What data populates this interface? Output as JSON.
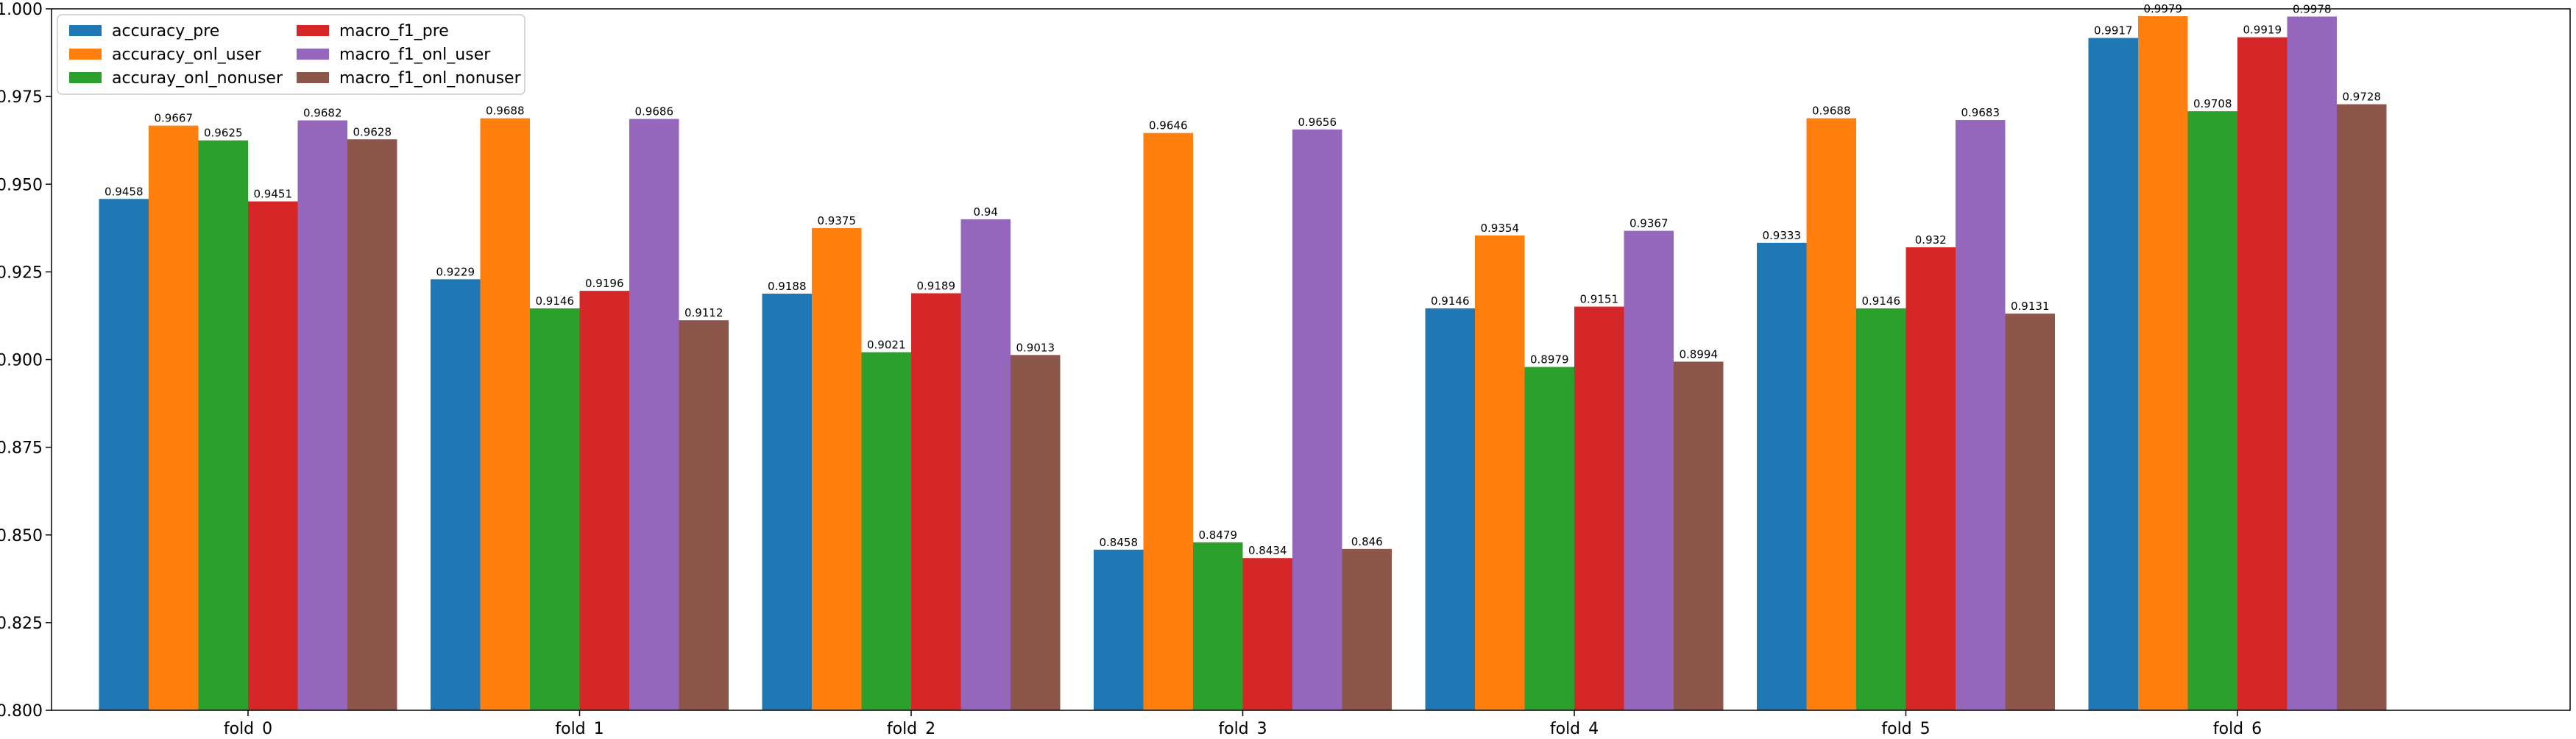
{
  "chart_data": {
    "type": "bar",
    "categories": [
      "fold_0",
      "fold_1",
      "fold_2",
      "fold_3",
      "fold_4",
      "fold_5",
      "fold_6"
    ],
    "series": [
      {
        "name": "accuracy_pre",
        "color": "#1f77b4",
        "values": [
          0.9458,
          0.9229,
          0.9188,
          0.8458,
          0.9146,
          0.9333,
          0.9917
        ]
      },
      {
        "name": "accuracy_onl_user",
        "color": "#ff7f0e",
        "values": [
          0.9667,
          0.9688,
          0.9375,
          0.9646,
          0.9354,
          0.9688,
          0.9979
        ]
      },
      {
        "name": "accuray_onl_nonuser",
        "color": "#2ca02c",
        "values": [
          0.9625,
          0.9146,
          0.9021,
          0.8479,
          0.8979,
          0.9146,
          0.9708
        ]
      },
      {
        "name": "macro_f1_pre",
        "color": "#d62728",
        "values": [
          0.9451,
          0.9196,
          0.9189,
          0.8434,
          0.9151,
          0.932,
          0.9919
        ]
      },
      {
        "name": "macro_f1_onl_user",
        "color": "#9467bd",
        "values": [
          0.9682,
          0.9686,
          0.94,
          0.9656,
          0.9367,
          0.9683,
          0.9978
        ]
      },
      {
        "name": "macro_f1_onl_nonuser",
        "color": "#8c564b",
        "values": [
          0.9628,
          0.9112,
          0.9013,
          0.846,
          0.8994,
          0.9131,
          0.9728
        ]
      }
    ],
    "ylim": [
      0.8,
      1.0
    ],
    "yticks": [
      0.8,
      0.825,
      0.85,
      0.875,
      0.9,
      0.925,
      0.95,
      0.975,
      1.0
    ],
    "ytick_labels": [
      "0.800",
      "0.825",
      "0.850",
      "0.875",
      "0.900",
      "0.925",
      "0.950",
      "0.975",
      "1.000"
    ],
    "legend_position": "top-left",
    "legend_columns": 2,
    "grid": false
  }
}
